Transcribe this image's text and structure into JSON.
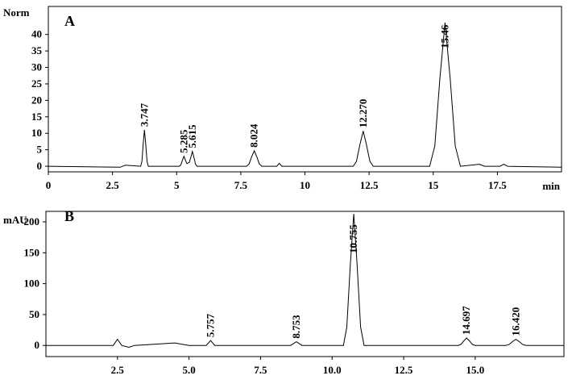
{
  "chart_data": [
    {
      "type": "line",
      "title": "A",
      "y_label": "Norm",
      "x_label": "min",
      "color": "#000000",
      "xlim": [
        0,
        20
      ],
      "ylim": [
        -1.7,
        48.5
      ],
      "xticks": [
        0,
        2.5,
        5,
        7.5,
        10,
        12.5,
        15,
        17.5
      ],
      "yticks": [
        0,
        5,
        10,
        15,
        20,
        25,
        30,
        35,
        40
      ],
      "x": [
        0,
        2.8,
        3.0,
        3.597,
        3.647,
        3.697,
        3.747,
        3.797,
        3.847,
        3.897,
        5.105,
        5.165,
        5.225,
        5.285,
        5.345,
        5.405,
        5.495,
        5.555,
        5.615,
        5.675,
        5.735,
        5.795,
        7.724,
        7.824,
        7.924,
        8.024,
        8.124,
        8.224,
        8.324,
        8.9,
        9.0,
        9.1,
        11.88,
        12.01,
        12.14,
        12.27,
        12.4,
        12.53,
        12.66,
        14.86,
        15.06,
        15.26,
        15.46,
        15.66,
        15.86,
        16.06,
        16.8,
        17.0,
        17.6,
        17.75,
        17.9,
        20
      ],
      "values": [
        0,
        -0.3,
        0.3,
        0,
        1.5,
        6.7,
        11,
        6.7,
        1.5,
        0,
        0,
        0.4,
        1.8,
        3,
        1.8,
        0.8,
        1.2,
        2.7,
        4.5,
        2.7,
        0.6,
        0,
        0,
        0.7,
        2.9,
        4.7,
        2.9,
        0.7,
        0,
        0,
        0.9,
        0,
        0,
        1.5,
        6.5,
        10.7,
        6.5,
        1.5,
        0,
        0,
        6.1,
        26.6,
        43.6,
        26.6,
        6.1,
        0,
        0.6,
        0,
        0,
        0.6,
        0,
        -0.3
      ],
      "peaks": [
        {
          "x": 3.747,
          "height": 11,
          "label": "3.747"
        },
        {
          "x": 5.285,
          "height": 3,
          "label": "5.285"
        },
        {
          "x": 5.615,
          "height": 4.5,
          "label": "5.615"
        },
        {
          "x": 8.024,
          "height": 4.7,
          "label": "8.024"
        },
        {
          "x": 12.27,
          "height": 10.7,
          "label": "12.270"
        },
        {
          "x": 15.46,
          "height": 43.6,
          "label": "15.46"
        }
      ]
    },
    {
      "type": "line",
      "title": "B",
      "y_label": "mAU",
      "color": "#000000",
      "xlim": [
        0,
        18.1
      ],
      "ylim": [
        -18,
        217
      ],
      "xticks": [
        {
          "value": 2.5,
          "label": "2.5"
        },
        {
          "value": 5,
          "label": "5.0"
        },
        {
          "value": 7.5,
          "label": "7.5"
        },
        {
          "value": 10,
          "label": "10.0"
        },
        {
          "value": 12.5,
          "label": "12.5"
        },
        {
          "value": 15,
          "label": "15.0"
        }
      ],
      "yticks": [
        0,
        50,
        100,
        150,
        200
      ],
      "x": [
        0,
        2.35,
        2.5,
        2.65,
        2.9,
        3.1,
        4.5,
        5.0,
        5.6,
        5.757,
        5.9,
        8.55,
        8.753,
        8.95,
        10.395,
        10.515,
        10.635,
        10.755,
        10.875,
        10.995,
        11.115,
        14.4,
        14.5,
        14.6,
        14.697,
        14.8,
        14.9,
        15.0,
        16.06,
        16.18,
        16.3,
        16.42,
        16.54,
        16.66,
        16.78,
        18.1
      ],
      "values": [
        0,
        0,
        10,
        0,
        -3,
        0,
        4,
        0,
        0,
        8,
        0,
        0,
        6,
        0,
        0,
        29.8,
        130,
        213,
        130,
        29.8,
        0,
        0,
        1.7,
        7.3,
        12,
        7.3,
        1.7,
        0,
        0,
        1.4,
        6.1,
        10,
        6.1,
        1.4,
        0,
        0
      ],
      "peaks": [
        {
          "x": 5.757,
          "height": 8,
          "label": "5.757"
        },
        {
          "x": 8.753,
          "height": 6,
          "label": "8.753"
        },
        {
          "x": 10.755,
          "height": 213,
          "label": "10.755"
        },
        {
          "x": 14.697,
          "height": 12,
          "label": "14.697"
        },
        {
          "x": 16.42,
          "height": 10,
          "label": "16.420"
        }
      ]
    }
  ]
}
